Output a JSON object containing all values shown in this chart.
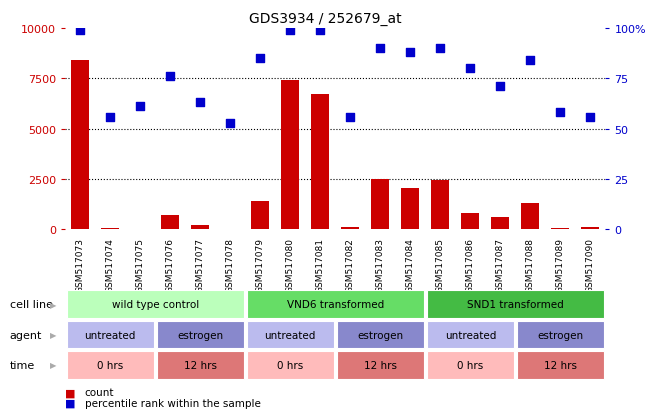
{
  "title": "GDS3934 / 252679_at",
  "samples": [
    "GSM517073",
    "GSM517074",
    "GSM517075",
    "GSM517076",
    "GSM517077",
    "GSM517078",
    "GSM517079",
    "GSM517080",
    "GSM517081",
    "GSM517082",
    "GSM517083",
    "GSM517084",
    "GSM517085",
    "GSM517086",
    "GSM517087",
    "GSM517088",
    "GSM517089",
    "GSM517090"
  ],
  "counts": [
    8400,
    50,
    30,
    700,
    200,
    30,
    1400,
    7400,
    6700,
    100,
    2500,
    2050,
    2450,
    800,
    600,
    1300,
    80,
    120
  ],
  "percentiles": [
    99,
    56,
    61,
    76,
    63,
    53,
    85,
    99,
    99,
    56,
    90,
    88,
    90,
    80,
    71,
    84,
    58,
    56
  ],
  "bar_color": "#cc0000",
  "dot_color": "#0000cc",
  "ylim_left": [
    0,
    10000
  ],
  "ylim_right": [
    0,
    100
  ],
  "yticks_left": [
    0,
    2500,
    5000,
    7500,
    10000
  ],
  "yticks_right": [
    0,
    25,
    50,
    75,
    100
  ],
  "cell_line_groups": [
    {
      "label": "wild type control",
      "start": 0,
      "end": 6,
      "color": "#bbffbb"
    },
    {
      "label": "VND6 transformed",
      "start": 6,
      "end": 12,
      "color": "#66dd66"
    },
    {
      "label": "SND1 transformed",
      "start": 12,
      "end": 18,
      "color": "#44bb44"
    }
  ],
  "agent_groups": [
    {
      "label": "untreated",
      "start": 0,
      "end": 3,
      "color": "#bbbbee"
    },
    {
      "label": "estrogen",
      "start": 3,
      "end": 6,
      "color": "#8888cc"
    },
    {
      "label": "untreated",
      "start": 6,
      "end": 9,
      "color": "#bbbbee"
    },
    {
      "label": "estrogen",
      "start": 9,
      "end": 12,
      "color": "#8888cc"
    },
    {
      "label": "untreated",
      "start": 12,
      "end": 15,
      "color": "#bbbbee"
    },
    {
      "label": "estrogen",
      "start": 15,
      "end": 18,
      "color": "#8888cc"
    }
  ],
  "time_groups": [
    {
      "label": "0 hrs",
      "start": 0,
      "end": 3,
      "color": "#ffbbbb"
    },
    {
      "label": "12 hrs",
      "start": 3,
      "end": 6,
      "color": "#dd7777"
    },
    {
      "label": "0 hrs",
      "start": 6,
      "end": 9,
      "color": "#ffbbbb"
    },
    {
      "label": "12 hrs",
      "start": 9,
      "end": 12,
      "color": "#dd7777"
    },
    {
      "label": "0 hrs",
      "start": 12,
      "end": 15,
      "color": "#ffbbbb"
    },
    {
      "label": "12 hrs",
      "start": 15,
      "end": 18,
      "color": "#dd7777"
    }
  ],
  "legend_count_color": "#cc0000",
  "legend_dot_color": "#0000cc",
  "bg_color": "#ffffff",
  "tick_color_left": "#cc0000",
  "tick_color_right": "#0000cc",
  "grid_color": "#000000",
  "arrow_color": "#aaaaaa"
}
